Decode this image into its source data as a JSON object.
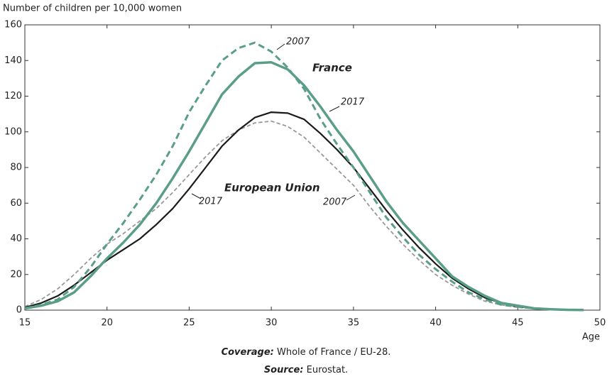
{
  "chart_data": {
    "type": "line",
    "y_label": "Number of children per 10,000 women",
    "x_label": "Age",
    "x": [
      15,
      16,
      17,
      18,
      19,
      20,
      21,
      22,
      23,
      24,
      25,
      26,
      27,
      28,
      29,
      30,
      31,
      32,
      33,
      34,
      35,
      36,
      37,
      38,
      39,
      40,
      41,
      42,
      43,
      44,
      45,
      46,
      47,
      48,
      49
    ],
    "series": [
      {
        "color": "#5a9e89",
        "line_style": "solid",
        "width": 3.5,
        "values": [
          1,
          2.5,
          5,
          10,
          19,
          29,
          38,
          48,
          60,
          74,
          89,
          105,
          121,
          131,
          138.5,
          139,
          135,
          126,
          114,
          101,
          89,
          75,
          61,
          49,
          39,
          29,
          19,
          13,
          8,
          4,
          2.5,
          1,
          0.5,
          0.2,
          0.1
        ]
      },
      {
        "color": "#5a9e89",
        "line_style": "dashed",
        "width": 3,
        "values": [
          1,
          3,
          6,
          13,
          24,
          37,
          49,
          62,
          76,
          92,
          111,
          126,
          140,
          147,
          150,
          145,
          136,
          124,
          107,
          93,
          80,
          66,
          52,
          41,
          31,
          23,
          16,
          10,
          6,
          3,
          2,
          1,
          0.5,
          0.2,
          0.1
        ]
      },
      {
        "color": "#1a1a1a",
        "line_style": "solid",
        "width": 2.2,
        "values": [
          1.5,
          4,
          8,
          14,
          21,
          28,
          34,
          40,
          48,
          57,
          68,
          80,
          92,
          101,
          108,
          111,
          110.5,
          107,
          99,
          90,
          80,
          68,
          56,
          45,
          35,
          26,
          18,
          12,
          7,
          4,
          2,
          1,
          0.5,
          0.2,
          0.1
        ]
      },
      {
        "color": "#999999",
        "line_style": "dashed",
        "width": 1.8,
        "values": [
          2,
          6,
          12,
          20,
          29,
          37,
          43,
          50,
          57,
          66,
          76,
          86,
          95,
          101,
          105,
          106,
          103,
          97,
          88,
          79,
          70,
          58,
          47,
          37,
          28,
          20,
          14,
          9,
          5,
          3,
          1.5,
          0.8,
          0.3,
          0.1,
          0
        ]
      }
    ],
    "annotations": [
      "2007",
      "France",
      "2017",
      "European Union",
      "2017",
      "2007"
    ],
    "xlim": [
      15,
      50
    ],
    "xticks": [
      15,
      20,
      25,
      30,
      35,
      40,
      45,
      50
    ],
    "ylim": [
      0,
      160
    ],
    "yticks": [
      0,
      20,
      40,
      60,
      80,
      100,
      120,
      140,
      160
    ],
    "footer": {
      "coverage_label": "Coverage:",
      "coverage_text": "Whole of France / EU-28.",
      "source_label": "Source:",
      "source_text": "Eurostat."
    }
  }
}
